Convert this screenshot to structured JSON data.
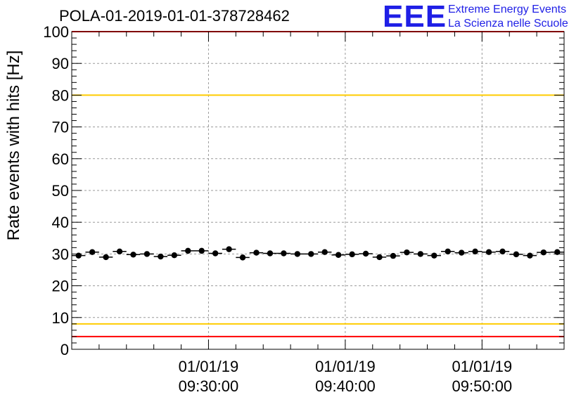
{
  "title": "POLA-01-2019-01-01-378728462",
  "logo": {
    "mark": "EEE",
    "line1": "Extreme Energy Events",
    "line2": "La Scienza nelle Scuole",
    "color": "#1f1fe6"
  },
  "chart_data": {
    "type": "scatter",
    "ylabel": "Rate events with hits [Hz]",
    "xlabel": "",
    "ylim": [
      0,
      100
    ],
    "yticks": [
      0,
      10,
      20,
      30,
      40,
      50,
      60,
      70,
      80,
      90,
      100
    ],
    "xlim": [
      "2019-01-01 09:20:00",
      "2019-01-01 09:56:00"
    ],
    "xticks": [
      {
        "time": "2019-01-01 09:30:00",
        "date": "01/01/19",
        "clock": "09:30:00"
      },
      {
        "time": "2019-01-01 09:40:00",
        "date": "01/01/19",
        "clock": "09:40:00"
      },
      {
        "time": "2019-01-01 09:50:00",
        "date": "01/01/19",
        "clock": "09:50:00"
      }
    ],
    "grid": true,
    "series": [
      {
        "marker": "circle",
        "color": "#000000",
        "x": [
          "09:20:30",
          "09:21:30",
          "09:22:30",
          "09:23:30",
          "09:24:30",
          "09:25:30",
          "09:26:30",
          "09:27:30",
          "09:28:30",
          "09:29:30",
          "09:30:30",
          "09:31:30",
          "09:32:30",
          "09:33:30",
          "09:34:30",
          "09:35:30",
          "09:36:30",
          "09:37:30",
          "09:38:30",
          "09:39:30",
          "09:40:30",
          "09:41:30",
          "09:42:30",
          "09:43:30",
          "09:44:30",
          "09:45:30",
          "09:46:30",
          "09:47:30",
          "09:48:30",
          "09:49:30",
          "09:50:30",
          "09:51:30",
          "09:52:30",
          "09:53:30",
          "09:54:30",
          "09:55:30"
        ],
        "y": [
          29.5,
          30.6,
          29.0,
          30.8,
          29.8,
          30.0,
          29.2,
          29.6,
          31.0,
          31.0,
          30.2,
          31.5,
          28.9,
          30.4,
          30.2,
          30.2,
          30.0,
          30.0,
          30.6,
          29.7,
          29.9,
          30.1,
          29.0,
          29.4,
          30.5,
          30.0,
          29.5,
          30.8,
          30.4,
          30.8,
          30.6,
          30.8,
          29.9,
          29.5,
          30.5,
          30.6
        ]
      }
    ],
    "reference_lines": [
      {
        "y": 100,
        "color": "#ff0000"
      },
      {
        "y": 80,
        "color": "#ffcc00"
      },
      {
        "y": 8,
        "color": "#ffcc00"
      },
      {
        "y": 4,
        "color": "#ff0000"
      }
    ]
  }
}
